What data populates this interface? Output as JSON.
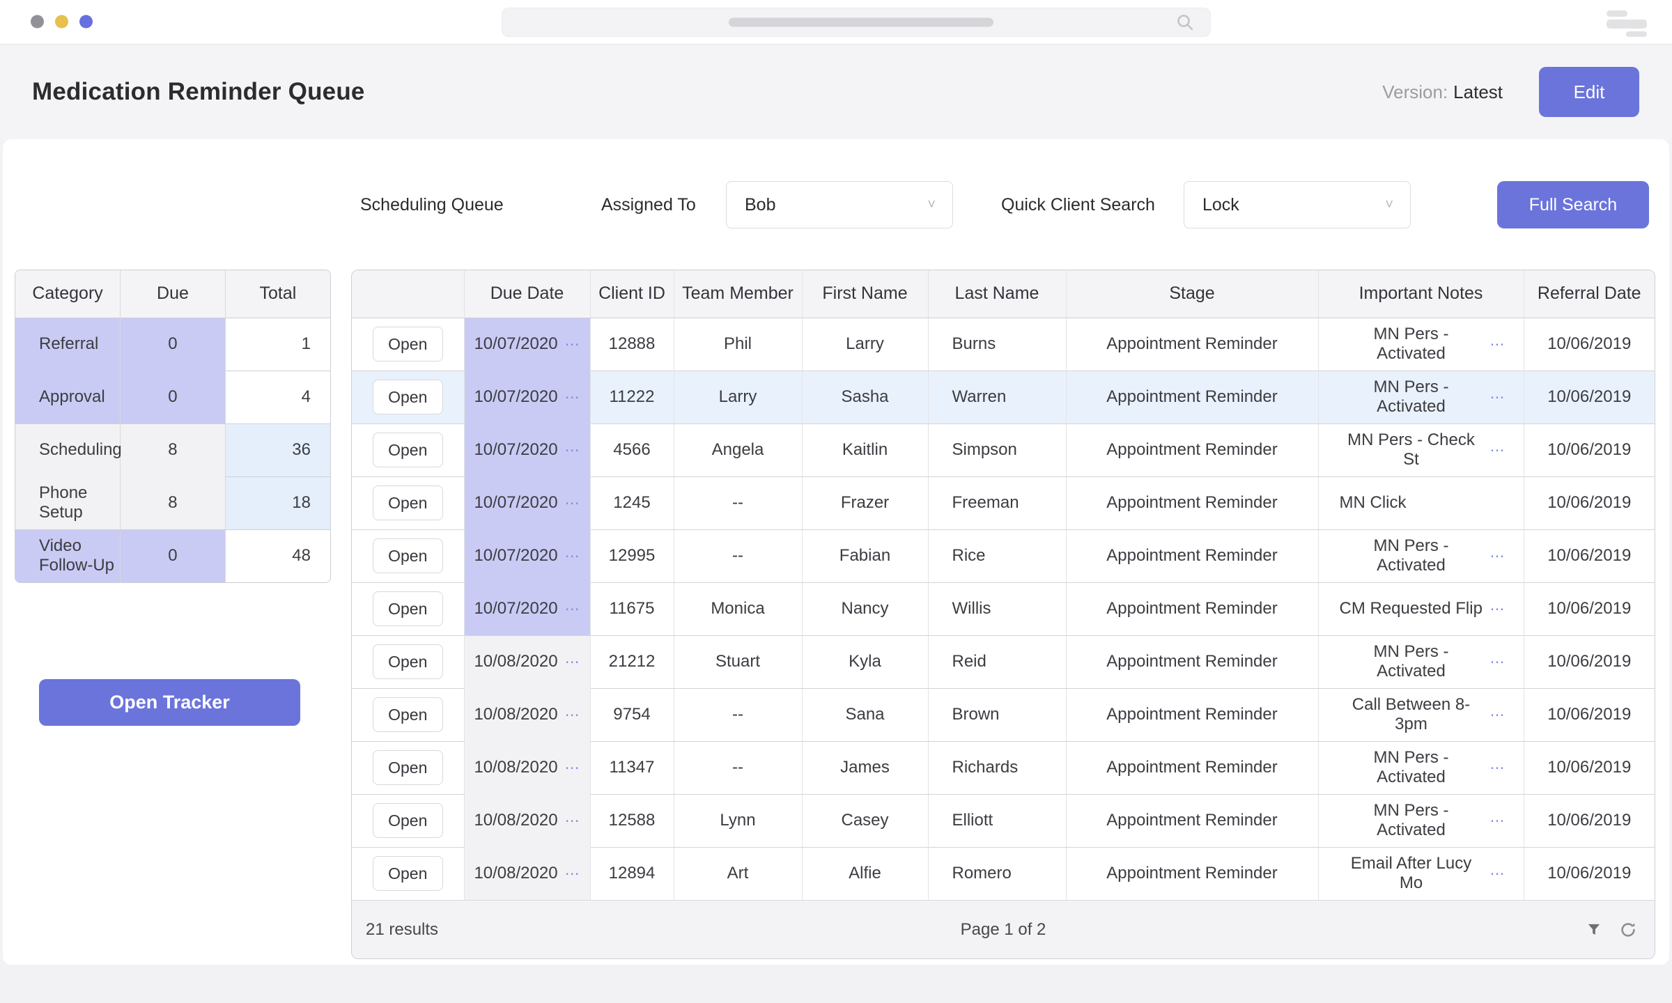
{
  "colors": {
    "accent": "#6b74db",
    "purple_cell": "#c9cbf4",
    "row_highlight": "#e9f2fc",
    "total_highlight": "#e4effb",
    "gray_cell": "#f2f2f4",
    "dot_gray": "#919197",
    "dot_yellow": "#e7c04e",
    "dot_purple": "#6670de"
  },
  "header": {
    "title": "Medication Reminder Queue",
    "version_label": "Version:",
    "version_value": "Latest",
    "edit_button": "Edit"
  },
  "filters": {
    "queue_label": "Scheduling Queue",
    "assigned_to_label": "Assigned To",
    "assigned_to_value": "Bob",
    "quick_search_label": "Quick Client Search",
    "quick_search_value": "Lock",
    "full_search_button": "Full Search"
  },
  "summary_table": {
    "headers": [
      "Category",
      "Due",
      "Total"
    ],
    "rows": [
      {
        "category": "Referral",
        "due": "0",
        "total": "1",
        "tint": "purple",
        "total_tint": "white"
      },
      {
        "category": "Approval",
        "due": "0",
        "total": "4",
        "tint": "purple",
        "total_tint": "white"
      },
      {
        "category": "Scheduling",
        "due": "8",
        "total": "36",
        "tint": "gray",
        "total_tint": "blue"
      },
      {
        "category": "Phone Setup",
        "due": "8",
        "total": "18",
        "tint": "gray",
        "total_tint": "blue"
      },
      {
        "category": "Video Follow-Up",
        "due": "0",
        "total": "48",
        "tint": "purple",
        "total_tint": "white"
      }
    ]
  },
  "tracker_button": "Open Tracker",
  "main_table": {
    "headers": [
      "",
      "Due Date",
      "Client ID",
      "Team Member",
      "First Name",
      "Last Name",
      "Stage",
      "Important Notes",
      "Referral Date"
    ],
    "open_label": "Open",
    "rows": [
      {
        "due_date": "10/07/2020",
        "due_more": true,
        "client_id": "12888",
        "team_member": "Phil",
        "first_name": "Larry",
        "last_name": "Burns",
        "stage": "Appointment Reminder",
        "notes": "MN Pers - Activated",
        "notes_more": true,
        "referral_date": "10/06/2019",
        "due_tint": "purple",
        "highlight": false
      },
      {
        "due_date": "10/07/2020",
        "due_more": true,
        "client_id": "11222",
        "team_member": "Larry",
        "first_name": "Sasha",
        "last_name": "Warren",
        "stage": "Appointment Reminder",
        "notes": "MN Pers - Activated",
        "notes_more": true,
        "referral_date": "10/06/2019",
        "due_tint": "purple",
        "highlight": true
      },
      {
        "due_date": "10/07/2020",
        "due_more": true,
        "client_id": "4566",
        "team_member": "Angela",
        "first_name": "Kaitlin",
        "last_name": "Simpson",
        "stage": "Appointment Reminder",
        "notes": "MN Pers - Check St",
        "notes_more": true,
        "referral_date": "10/06/2019",
        "due_tint": "purple",
        "highlight": false
      },
      {
        "due_date": "10/07/2020",
        "due_more": true,
        "client_id": "1245",
        "team_member": "--",
        "first_name": "Frazer",
        "last_name": "Freeman",
        "stage": "Appointment Reminder",
        "notes": "MN Click",
        "notes_more": false,
        "referral_date": "10/06/2019",
        "due_tint": "purple",
        "highlight": false
      },
      {
        "due_date": "10/07/2020",
        "due_more": true,
        "client_id": "12995",
        "team_member": "--",
        "first_name": "Fabian",
        "last_name": "Rice",
        "stage": "Appointment Reminder",
        "notes": "MN Pers - Activated",
        "notes_more": true,
        "referral_date": "10/06/2019",
        "due_tint": "purple",
        "highlight": false
      },
      {
        "due_date": "10/07/2020",
        "due_more": true,
        "client_id": "11675",
        "team_member": "Monica",
        "first_name": "Nancy",
        "last_name": "Willis",
        "stage": "Appointment Reminder",
        "notes": "CM Requested Flip",
        "notes_more": true,
        "referral_date": "10/06/2019",
        "due_tint": "purple",
        "highlight": false
      },
      {
        "due_date": "10/08/2020",
        "due_more": true,
        "client_id": "21212",
        "team_member": "Stuart",
        "first_name": "Kyla",
        "last_name": "Reid",
        "stage": "Appointment Reminder",
        "notes": "MN Pers - Activated",
        "notes_more": true,
        "referral_date": "10/06/2019",
        "due_tint": "gray",
        "highlight": false
      },
      {
        "due_date": "10/08/2020",
        "due_more": true,
        "client_id": "9754",
        "team_member": "--",
        "first_name": "Sana",
        "last_name": "Brown",
        "stage": "Appointment Reminder",
        "notes": "Call Between 8-3pm",
        "notes_more": true,
        "referral_date": "10/06/2019",
        "due_tint": "gray",
        "highlight": false
      },
      {
        "due_date": "10/08/2020",
        "due_more": true,
        "client_id": "11347",
        "team_member": "--",
        "first_name": "James",
        "last_name": "Richards",
        "stage": "Appointment Reminder",
        "notes": "MN Pers - Activated",
        "notes_more": true,
        "referral_date": "10/06/2019",
        "due_tint": "gray",
        "highlight": false
      },
      {
        "due_date": "10/08/2020",
        "due_more": true,
        "client_id": "12588",
        "team_member": "Lynn",
        "first_name": "Casey",
        "last_name": "Elliott",
        "stage": "Appointment Reminder",
        "notes": "MN Pers - Activated",
        "notes_more": true,
        "referral_date": "10/06/2019",
        "due_tint": "gray",
        "highlight": false
      },
      {
        "due_date": "10/08/2020",
        "due_more": true,
        "client_id": "12894",
        "team_member": "Art",
        "first_name": "Alfie",
        "last_name": "Romero",
        "stage": "Appointment Reminder",
        "notes": "Email After Lucy Mo",
        "notes_more": true,
        "referral_date": "10/06/2019",
        "due_tint": "gray",
        "highlight": false
      }
    ]
  },
  "table_footer": {
    "results": "21 results",
    "page": "Page 1 of 2"
  }
}
